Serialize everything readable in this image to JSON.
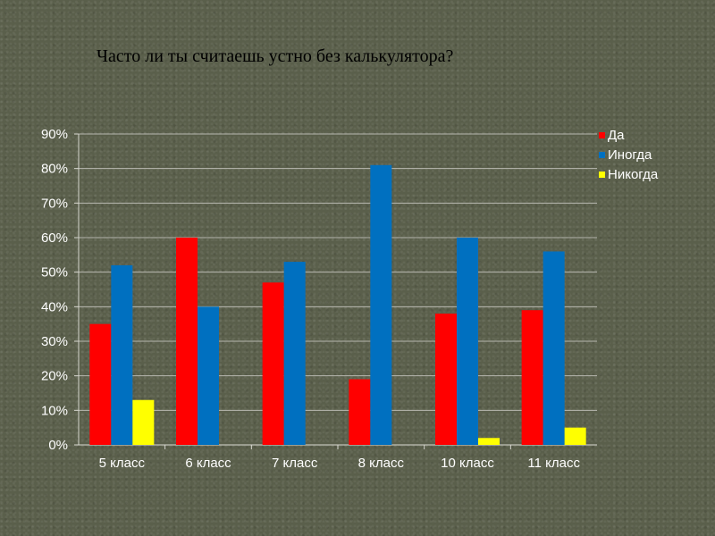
{
  "chart_data": {
    "type": "bar",
    "title": "Часто ли ты считаешь устно без калькулятора?",
    "categories": [
      "5 класс",
      "6 класс",
      "7 класс",
      "8 класс",
      "10 класс",
      "11 класс"
    ],
    "series": [
      {
        "name": "Да",
        "color": "#ff0000",
        "values": [
          35,
          60,
          47,
          19,
          38,
          39
        ]
      },
      {
        "name": "Иногда",
        "color": "#0070c0",
        "values": [
          52,
          40,
          53,
          81,
          60,
          56
        ]
      },
      {
        "name": "Никогда",
        "color": "#ffff00",
        "values": [
          13,
          0,
          0,
          0,
          2,
          5
        ]
      }
    ],
    "ylim": [
      0,
      90
    ],
    "yticks": [
      "0%",
      "10%",
      "20%",
      "30%",
      "40%",
      "50%",
      "60%",
      "70%",
      "80%",
      "90%"
    ],
    "grid": true,
    "legend_position": "top-right"
  }
}
